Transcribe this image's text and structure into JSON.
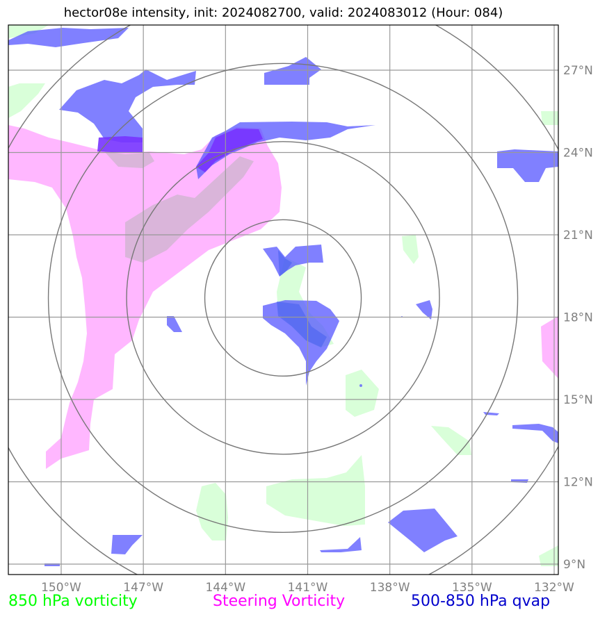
{
  "title": "hector08e intensity, init: 2024082700, valid: 2024083012 (Hour: 084)",
  "map": {
    "lon_ticks": [
      "150°W",
      "147°W",
      "144°W",
      "141°W",
      "138°W",
      "135°W",
      "132°W"
    ],
    "lat_ticks": [
      "27°N",
      "24°N",
      "21°N",
      "18°N",
      "15°N",
      "12°N",
      "9°N"
    ],
    "storm_center": {
      "lon": -141.9,
      "lat": 18.7
    },
    "range_rings": 4,
    "colors": {
      "vort850": "#ccffcc",
      "steering": "#ff99ff",
      "qvap": "#5555ff",
      "grid": "#999999",
      "rings": "#777777"
    }
  },
  "legend": [
    {
      "label": "850 hPa vorticity",
      "color": "#00ff00"
    },
    {
      "label": "Steering Vorticity",
      "color": "#ff00ff"
    },
    {
      "label": "500-850 hPa qvap",
      "color": "#0000cc"
    }
  ]
}
